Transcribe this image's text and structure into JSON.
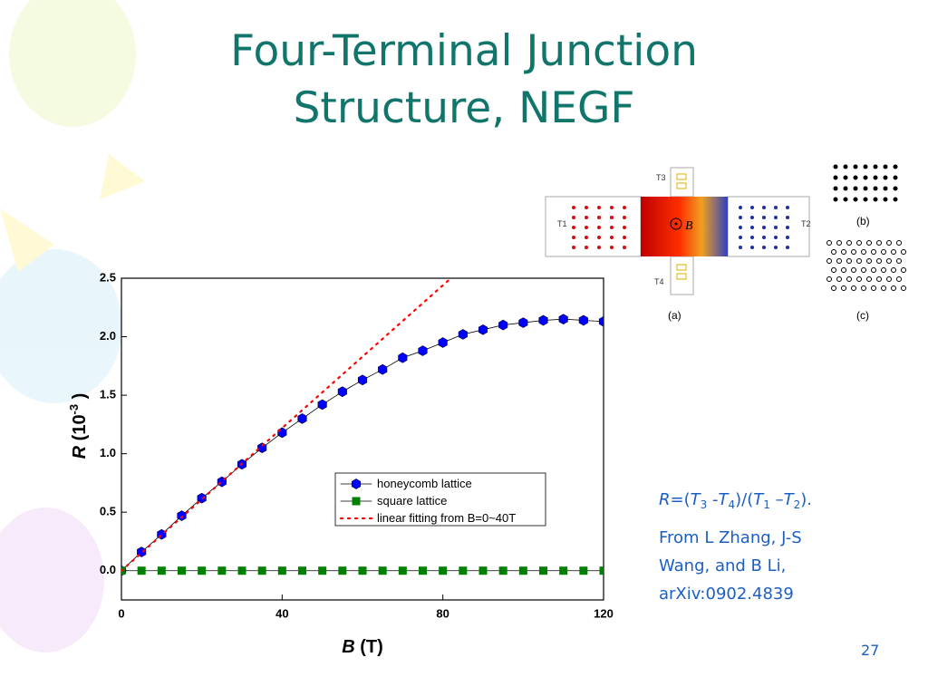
{
  "title": [
    "Four-Terminal Junction",
    "Structure, NEGF"
  ],
  "chart_data": {
    "type": "line",
    "xlabel": {
      "symbol": "B",
      "unit": "(T)"
    },
    "ylabel": {
      "symbol": "R",
      "unit": "(10",
      "exponent": "-3",
      "close": ")"
    },
    "xlim": [
      0,
      120
    ],
    "xticks": [
      0,
      40,
      80,
      120
    ],
    "ylim": [
      -0.25,
      2.5
    ],
    "yticks": [
      {
        "value": 0,
        "label": "0.0"
      },
      {
        "value": 0.5,
        "label": "0.5"
      },
      {
        "value": 1,
        "label": "1.0"
      },
      {
        "value": 1.5,
        "label": "1.5"
      },
      {
        "value": 2,
        "label": "2.0"
      },
      {
        "value": 2.5,
        "label": "2.5"
      }
    ],
    "series": [
      {
        "name": "honeycomb lattice",
        "color": "#0000ff",
        "marker": "hexagon",
        "linestyle": "solid",
        "x": [
          0,
          5,
          10,
          15,
          20,
          25,
          30,
          35,
          40,
          45,
          50,
          55,
          60,
          65,
          70,
          75,
          80,
          85,
          90,
          95,
          100,
          105,
          110,
          115,
          120
        ],
        "values": [
          0,
          0.16,
          0.31,
          0.47,
          0.62,
          0.76,
          0.91,
          1.05,
          1.18,
          1.3,
          1.42,
          1.53,
          1.63,
          1.72,
          1.82,
          1.88,
          1.95,
          2.02,
          2.06,
          2.1,
          2.12,
          2.14,
          2.15,
          2.14,
          2.13
        ]
      },
      {
        "name": "square lattice",
        "color": "#008000",
        "marker": "square",
        "linestyle": "solid",
        "x": [
          0,
          5,
          10,
          15,
          20,
          25,
          30,
          35,
          40,
          45,
          50,
          55,
          60,
          65,
          70,
          75,
          80,
          85,
          90,
          95,
          100,
          105,
          110,
          115,
          120
        ],
        "values": [
          0,
          0,
          0,
          0,
          0,
          0,
          0,
          0,
          0,
          0,
          0,
          0,
          0,
          0,
          0,
          0,
          0,
          0,
          0,
          0,
          0,
          0,
          0,
          0,
          0
        ]
      },
      {
        "name": "linear fitting from B=0~40T",
        "color": "#ff0000",
        "marker": "none",
        "linestyle": "dotted",
        "x": [
          0,
          82
        ],
        "values": [
          0,
          2.5
        ]
      }
    ]
  },
  "formula": [
    "R",
    "=(",
    "T",
    "3",
    " -",
    "T",
    "4",
    ")/(",
    "T",
    "1",
    " –",
    "T",
    "2",
    ")."
  ],
  "citation": [
    "From L Zhang, J-S",
    "Wang, and B Li,",
    "arXiv:0902.4839"
  ],
  "page_number": "27",
  "figure": {
    "t3": "T3",
    "t1": "T1",
    "t2": "T2",
    "t4": "T4",
    "field": "B",
    "a": "(a)",
    "b": "(b)",
    "c": "(c)"
  }
}
